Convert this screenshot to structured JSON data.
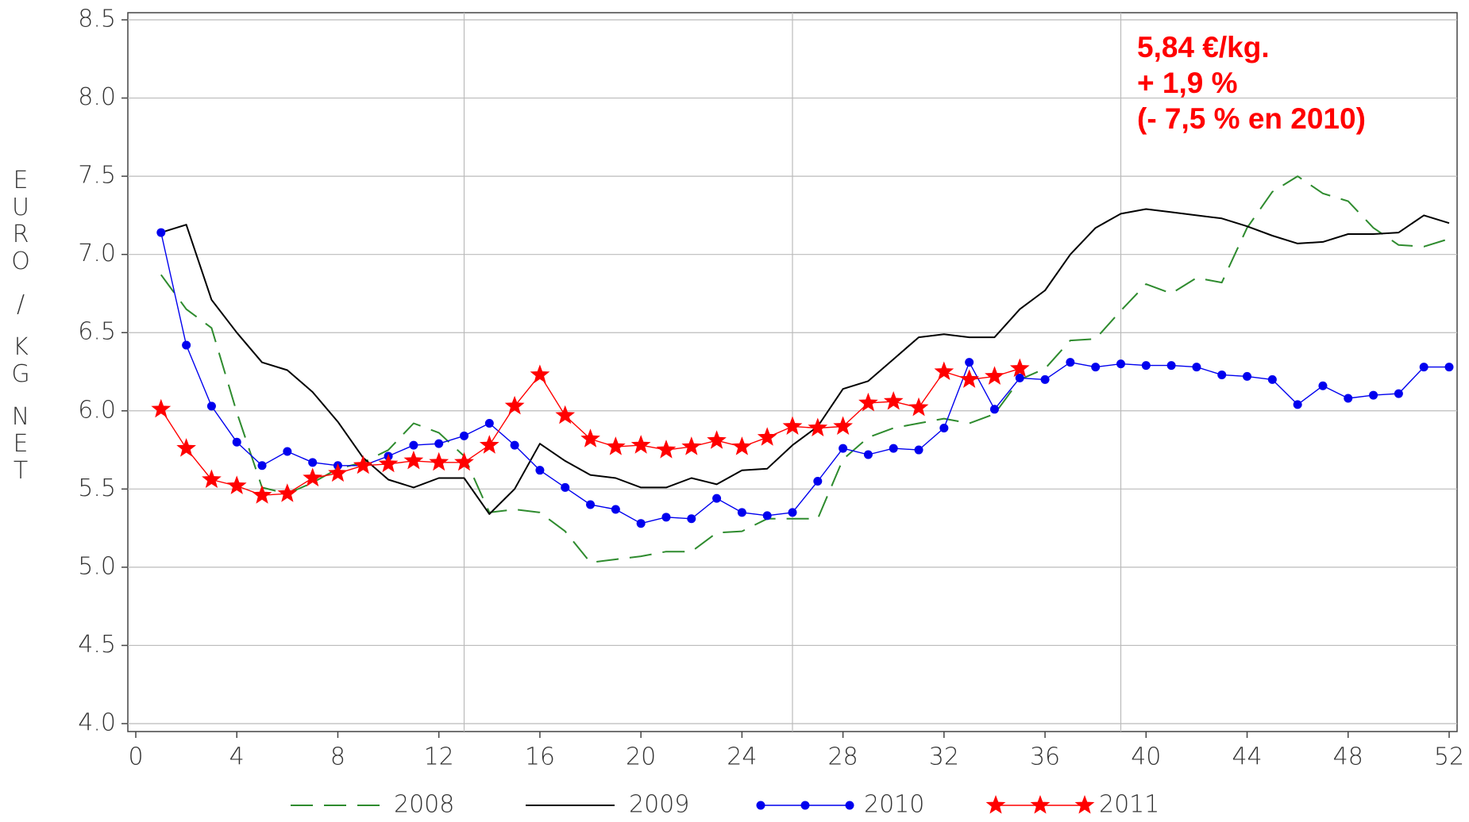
{
  "chart_data": {
    "type": "line",
    "y_label": "EURO / KG NET",
    "annotation": [
      "5,84 €/kg.",
      "+ 1,9 %",
      "(- 7,5 % en 2010)"
    ],
    "x": [
      1,
      2,
      3,
      4,
      5,
      6,
      7,
      8,
      9,
      10,
      11,
      12,
      13,
      14,
      15,
      16,
      17,
      18,
      19,
      20,
      21,
      22,
      23,
      24,
      25,
      26,
      27,
      28,
      29,
      30,
      31,
      32,
      33,
      34,
      35,
      36,
      37,
      38,
      39,
      40,
      41,
      42,
      43,
      44,
      45,
      46,
      47,
      48,
      49,
      50,
      51,
      52
    ],
    "xlim": [
      0,
      52
    ],
    "xticks": [
      0,
      4,
      8,
      12,
      16,
      20,
      24,
      28,
      32,
      36,
      40,
      44,
      48,
      52
    ],
    "xgrid": [
      13,
      26,
      39
    ],
    "ylim": [
      4.0,
      8.5
    ],
    "yticks": [
      {
        "value": 4.0,
        "label": "4.0"
      },
      4.5,
      {
        "value": 5.0,
        "label": "5.0"
      },
      5.5,
      {
        "value": 6.0,
        "label": "6.0"
      },
      6.5,
      {
        "value": 7.0,
        "label": "7.0"
      },
      7.5,
      {
        "value": 8.0,
        "label": "8.0"
      },
      8.5
    ],
    "grid": true,
    "series": [
      {
        "name": "2008",
        "color": "#2e8b2e",
        "dash": true,
        "marker": null,
        "values": [
          6.87,
          6.65,
          6.53,
          5.99,
          5.51,
          5.47,
          5.54,
          5.63,
          5.67,
          5.75,
          5.92,
          5.86,
          5.71,
          5.35,
          5.37,
          5.35,
          5.23,
          5.03,
          5.05,
          5.07,
          5.1,
          5.1,
          5.22,
          5.23,
          5.31,
          5.31,
          5.31,
          5.69,
          5.83,
          5.89,
          5.92,
          5.95,
          5.92,
          5.98,
          6.2,
          6.27,
          6.45,
          6.46,
          6.64,
          6.81,
          6.75,
          6.85,
          6.82,
          7.17,
          7.4,
          7.5,
          7.39,
          7.34,
          7.17,
          7.06,
          7.05,
          7.1
        ]
      },
      {
        "name": "2009",
        "color": "#000000",
        "dash": false,
        "marker": null,
        "values": [
          7.14,
          7.19,
          6.71,
          6.5,
          6.31,
          6.26,
          6.12,
          5.93,
          5.7,
          5.56,
          5.51,
          5.57,
          5.57,
          5.34,
          5.5,
          5.79,
          5.68,
          5.59,
          5.57,
          5.51,
          5.51,
          5.57,
          5.53,
          5.62,
          5.63,
          5.78,
          5.9,
          6.14,
          6.19,
          6.33,
          6.47,
          6.49,
          6.47,
          6.47,
          6.65,
          6.77,
          7.0,
          7.17,
          7.26,
          7.29,
          7.27,
          7.25,
          7.23,
          7.18,
          7.12,
          7.07,
          7.08,
          7.13,
          7.13,
          7.14,
          7.25,
          7.2
        ]
      },
      {
        "name": "2010",
        "color": "#0000ee",
        "dash": false,
        "marker": "circle",
        "values": [
          7.14,
          6.42,
          6.03,
          5.8,
          5.65,
          5.74,
          5.67,
          5.65,
          5.65,
          5.71,
          5.78,
          5.79,
          5.84,
          5.92,
          5.78,
          5.62,
          5.51,
          5.4,
          5.37,
          5.28,
          5.32,
          5.31,
          5.44,
          5.35,
          5.33,
          5.35,
          5.55,
          5.76,
          5.72,
          5.76,
          5.75,
          5.89,
          6.31,
          6.01,
          6.21,
          6.2,
          6.31,
          6.28,
          6.3,
          6.29,
          6.29,
          6.28,
          6.23,
          6.22,
          6.2,
          6.04,
          6.16,
          6.08,
          6.1,
          6.11,
          6.28,
          6.28
        ]
      },
      {
        "name": "2011",
        "color": "#ff0000",
        "dash": false,
        "marker": "star",
        "values": [
          6.01,
          5.76,
          5.56,
          5.52,
          5.46,
          5.47,
          5.57,
          5.6,
          5.65,
          5.66,
          5.68,
          5.67,
          5.67,
          5.78,
          6.03,
          6.23,
          5.97,
          5.82,
          5.77,
          5.78,
          5.75,
          5.77,
          5.81,
          5.77,
          5.83,
          5.9,
          5.89,
          5.9,
          6.05,
          6.06,
          6.02,
          6.25,
          6.2,
          6.22,
          6.27,
          null,
          null,
          null,
          null,
          null,
          null,
          null,
          null,
          null,
          null,
          null,
          null,
          null,
          null,
          null,
          null,
          null
        ]
      }
    ]
  }
}
